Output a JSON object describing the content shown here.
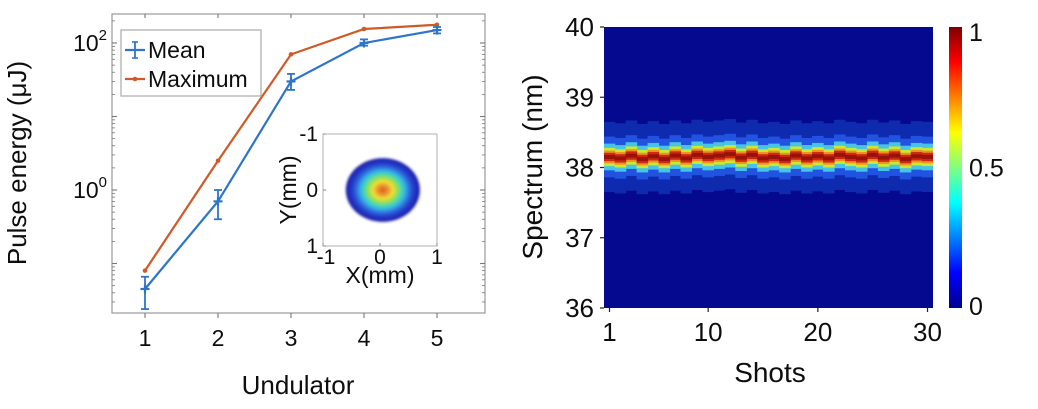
{
  "figure": {
    "background": "#ffffff"
  },
  "chart_data": [
    {
      "type": "line",
      "title": "",
      "xlabel": "Undulator",
      "ylabel": "Pulse energy (μJ)",
      "x": [
        1,
        2,
        3,
        4,
        5
      ],
      "xticks": [
        1,
        2,
        3,
        4,
        5
      ],
      "yscale": "log",
      "ylim": [
        0.02,
        250
      ],
      "xlim": [
        0.55,
        5.45
      ],
      "ytick_labels": [
        {
          "value": 100,
          "base": "10",
          "exp": "2"
        },
        {
          "value": 1,
          "base": "10",
          "exp": "0"
        }
      ],
      "grid": false,
      "legend_position": "top-left",
      "series": [
        {
          "name": "Mean",
          "color": "#2E74C8",
          "marker": "plus",
          "values": [
            0.045,
            0.7,
            30,
            100,
            150
          ],
          "err_low": [
            0.024,
            0.4,
            23,
            92,
            135
          ],
          "err_high": [
            0.066,
            1.0,
            38,
            112,
            165
          ]
        },
        {
          "name": "Maximum",
          "color": "#CF5A27",
          "marker": "dot",
          "values": [
            0.08,
            2.5,
            70,
            155,
            177
          ]
        }
      ],
      "inset": {
        "type": "beam-profile-heatmap",
        "xlabel": "X(mm)",
        "ylabel": "Y(mm)",
        "xlim": [
          -1,
          1
        ],
        "ylim": [
          -1,
          1
        ],
        "y_inverted": true,
        "xticks": [
          -1,
          0,
          1
        ],
        "yticks": [
          -1,
          0,
          1
        ],
        "beam": {
          "center": [
            0.05,
            0.0
          ],
          "rx_mm": 0.65,
          "ry_mm": 0.57,
          "colormap": "jet",
          "gradient": [
            {
              "offset": 0.0,
              "color": "#DB5A25"
            },
            {
              "offset": 0.16,
              "color": "#ED9A2E"
            },
            {
              "offset": 0.27,
              "color": "#F0E038"
            },
            {
              "offset": 0.39,
              "color": "#97E04B"
            },
            {
              "offset": 0.5,
              "color": "#45D8B8"
            },
            {
              "offset": 0.6,
              "color": "#35B4E4"
            },
            {
              "offset": 0.71,
              "color": "#2E6FE0"
            },
            {
              "offset": 0.84,
              "color": "#2438C8"
            },
            {
              "offset": 1.0,
              "color": "#1B1FA8"
            }
          ]
        }
      }
    },
    {
      "type": "heatmap",
      "title": "",
      "xlabel": "Shots",
      "ylabel": "Spectrum (nm)",
      "xlim": [
        0.5,
        30.5
      ],
      "ylim": [
        36,
        40
      ],
      "xticks": [
        1,
        10,
        20,
        30
      ],
      "yticks": [
        36,
        37,
        38,
        39,
        40
      ],
      "background_color": "#04098F",
      "band": {
        "center_nm": 38.15,
        "n_shots": 30,
        "center_offsets_nm": [
          0,
          -0.02,
          0.02,
          -0.03,
          0.01,
          -0.03,
          0.02,
          -0.02,
          0.03,
          0,
          0.02,
          0.04,
          -0.01,
          0.03,
          -0.02,
          0,
          -0.03,
          0.02,
          -0.02,
          0.01,
          -0.02,
          0.03,
          0,
          -0.02,
          0.03,
          -0.01,
          0.02,
          -0.03,
          0.01,
          0
        ],
        "layers": [
          {
            "halfwidth_nm": 0.5,
            "color": "#0E2AAE"
          },
          {
            "halfwidth_nm": 0.29,
            "color": "#2253E0"
          },
          {
            "halfwidth_nm": 0.19,
            "color": "#47C3E6"
          },
          {
            "halfwidth_nm": 0.13,
            "color": "#C9E832"
          },
          {
            "halfwidth_nm": 0.09,
            "color": "#F09023"
          },
          {
            "halfwidth_nm": 0.06,
            "color": "#CC2A10"
          },
          {
            "halfwidth_nm": 0.028,
            "color": "#97120B"
          }
        ]
      },
      "colorbar": {
        "min": 0,
        "max": 1,
        "ticks": [
          0,
          0.5,
          1
        ],
        "tick_labels": [
          "0",
          "0.5",
          "1"
        ],
        "colormap": "jet",
        "gradient_top_to_bottom": [
          {
            "offset": 0.0,
            "color": "#7F0000"
          },
          {
            "offset": 0.125,
            "color": "#FF0000"
          },
          {
            "offset": 0.375,
            "color": "#FFFF00"
          },
          {
            "offset": 0.625,
            "color": "#00FFFF"
          },
          {
            "offset": 0.875,
            "color": "#0000FF"
          },
          {
            "offset": 1.0,
            "color": "#00008F"
          }
        ]
      }
    }
  ]
}
